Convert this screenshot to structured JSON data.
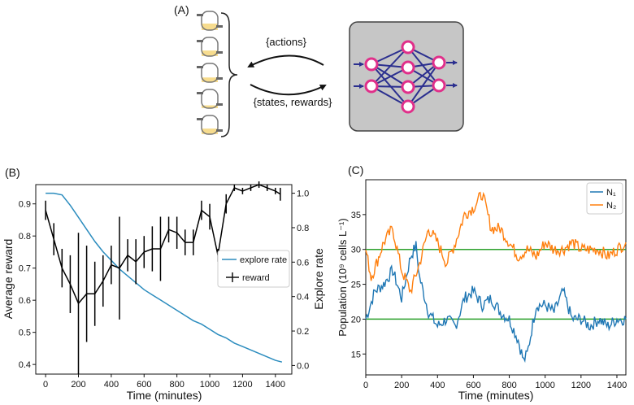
{
  "panel_a": {
    "label": "(A)",
    "actions_label": "{actions}",
    "states_label": "{states, rewards}",
    "vessel_fills": [
      0.35,
      0.3,
      0.25,
      0.15,
      0.3
    ]
  },
  "panel_b": {
    "label": "(B)"
  },
  "panel_c": {
    "label": "(C)"
  },
  "colors": {
    "fill": "#f7dc8e",
    "network_bg": "#c6c6c6",
    "node": "#e0308a",
    "edge": "#2b2f8f",
    "explore": "#2b8cbe",
    "reward": "#000000",
    "n1": "#1f77b4",
    "n2": "#ff7f0e",
    "target": "#2ca02c"
  },
  "chart_data": [
    {
      "type": "line",
      "title": "",
      "xlabel": "Time (minutes)",
      "ylabel": "Average reward",
      "ylabel_right": "Explore rate",
      "xlim": [
        -60,
        1500
      ],
      "ylim": [
        0.37,
        0.96
      ],
      "ylim_right": [
        -0.05,
        1.05
      ],
      "x_ticks": [
        0,
        200,
        400,
        600,
        800,
        1000,
        1200,
        1400
      ],
      "y_ticks": [
        0.4,
        0.5,
        0.6,
        0.7,
        0.8,
        0.9
      ],
      "y_ticks_right": [
        0.0,
        0.2,
        0.4,
        0.6,
        0.8,
        1.0
      ],
      "legend_position": "right-middle",
      "series": [
        {
          "name": "explore rate",
          "axis": "right",
          "x": [
            0,
            50,
            100,
            150,
            200,
            250,
            300,
            350,
            400,
            450,
            500,
            550,
            600,
            650,
            700,
            750,
            800,
            850,
            900,
            950,
            1000,
            1050,
            1100,
            1150,
            1200,
            1250,
            1300,
            1350,
            1400,
            1440
          ],
          "values": [
            1.0,
            1.0,
            0.99,
            0.93,
            0.86,
            0.79,
            0.72,
            0.66,
            0.61,
            0.56,
            0.52,
            0.48,
            0.44,
            0.41,
            0.38,
            0.35,
            0.32,
            0.29,
            0.26,
            0.24,
            0.21,
            0.18,
            0.16,
            0.13,
            0.11,
            0.09,
            0.07,
            0.05,
            0.03,
            0.02
          ]
        },
        {
          "name": "reward",
          "axis": "left",
          "x": [
            0,
            50,
            100,
            150,
            200,
            250,
            300,
            350,
            400,
            450,
            500,
            550,
            600,
            650,
            700,
            750,
            800,
            850,
            900,
            950,
            1000,
            1050,
            1100,
            1150,
            1200,
            1250,
            1300,
            1350,
            1400,
            1430
          ],
          "values": [
            0.88,
            0.79,
            0.7,
            0.65,
            0.59,
            0.62,
            0.62,
            0.66,
            0.71,
            0.7,
            0.74,
            0.72,
            0.75,
            0.76,
            0.76,
            0.82,
            0.81,
            0.78,
            0.78,
            0.88,
            0.86,
            0.74,
            0.9,
            0.95,
            0.94,
            0.95,
            0.96,
            0.95,
            0.94,
            0.93
          ],
          "errors": [
            0.03,
            0.05,
            0.06,
            0.09,
            0.22,
            0.15,
            0.1,
            0.08,
            0.06,
            0.16,
            0.05,
            0.07,
            0.05,
            0.07,
            0.1,
            0.04,
            0.05,
            0.04,
            0.04,
            0.03,
            0.04,
            0.02,
            0.03,
            0.01,
            0.01,
            0.01,
            0.01,
            0.01,
            0.01,
            0.02
          ]
        }
      ]
    },
    {
      "type": "line",
      "title": "",
      "xlabel": "Time (minutes)",
      "ylabel": "Population (10⁹ cells L⁻¹)",
      "xlim": [
        0,
        1450
      ],
      "ylim": [
        12,
        40
      ],
      "x_ticks": [
        0,
        200,
        400,
        600,
        800,
        1000,
        1200,
        1400
      ],
      "y_ticks": [
        15,
        20,
        25,
        30,
        35
      ],
      "legend_position": "top-right",
      "targets": [
        20,
        30
      ],
      "series": [
        {
          "name": "N₁",
          "x": [
            0,
            50,
            100,
            150,
            200,
            250,
            280,
            300,
            350,
            400,
            450,
            500,
            550,
            600,
            650,
            700,
            750,
            800,
            850,
            880,
            900,
            950,
            1000,
            1050,
            1100,
            1150,
            1200,
            1250,
            1300,
            1350,
            1400,
            1450
          ],
          "values": [
            20,
            24,
            25,
            27,
            23,
            29,
            30.5,
            26,
            21,
            19,
            20,
            19,
            23,
            24,
            22,
            23,
            21,
            20,
            17,
            14,
            15,
            22,
            22,
            21,
            24,
            20,
            20,
            19,
            20,
            19,
            20,
            20
          ]
        },
        {
          "name": "N₂",
          "x": [
            0,
            30,
            60,
            100,
            150,
            200,
            250,
            300,
            350,
            400,
            450,
            500,
            550,
            600,
            650,
            700,
            750,
            800,
            850,
            900,
            950,
            1000,
            1050,
            1100,
            1150,
            1200,
            1250,
            1300,
            1350,
            1400,
            1450
          ],
          "values": [
            30,
            26,
            28,
            31,
            33,
            27,
            24,
            28,
            33,
            31,
            28,
            31,
            35,
            36,
            38,
            33,
            33,
            31,
            29,
            30,
            29,
            31,
            30,
            30,
            31,
            30,
            30,
            30,
            29,
            30,
            31
          ]
        }
      ]
    }
  ]
}
